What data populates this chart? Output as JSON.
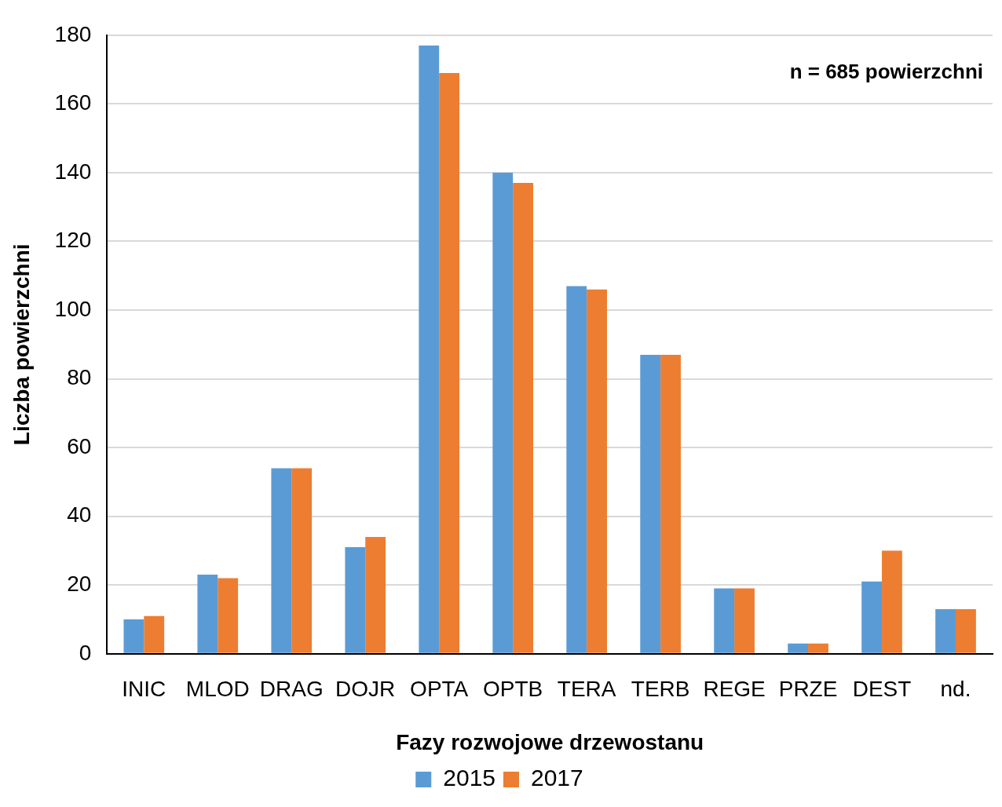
{
  "chart_data": {
    "type": "bar",
    "xlabel": "Fazy rozwojowe drzewostanu",
    "ylabel": "Liczba powierzchni",
    "categories": [
      "INIC",
      "MLOD",
      "DRAG",
      "DOJR",
      "OPTA",
      "OPTB",
      "TERA",
      "TERB",
      "REGE",
      "PRZE",
      "DEST",
      "nd."
    ],
    "series": [
      {
        "name": "2015",
        "color": "#5b9bd5",
        "values": [
          10,
          23,
          54,
          31,
          177,
          140,
          107,
          87,
          19,
          3,
          21,
          13
        ]
      },
      {
        "name": "2017",
        "color": "#ed7d31",
        "values": [
          11,
          22,
          54,
          34,
          169,
          137,
          106,
          87,
          19,
          3,
          30,
          13
        ]
      }
    ],
    "ylim": [
      0,
      180
    ],
    "yticks": [
      0,
      20,
      40,
      60,
      80,
      100,
      120,
      140,
      160,
      180
    ],
    "grid": "y",
    "legend": "bottom",
    "annotations": [
      "n = 685 powierzchni"
    ]
  }
}
